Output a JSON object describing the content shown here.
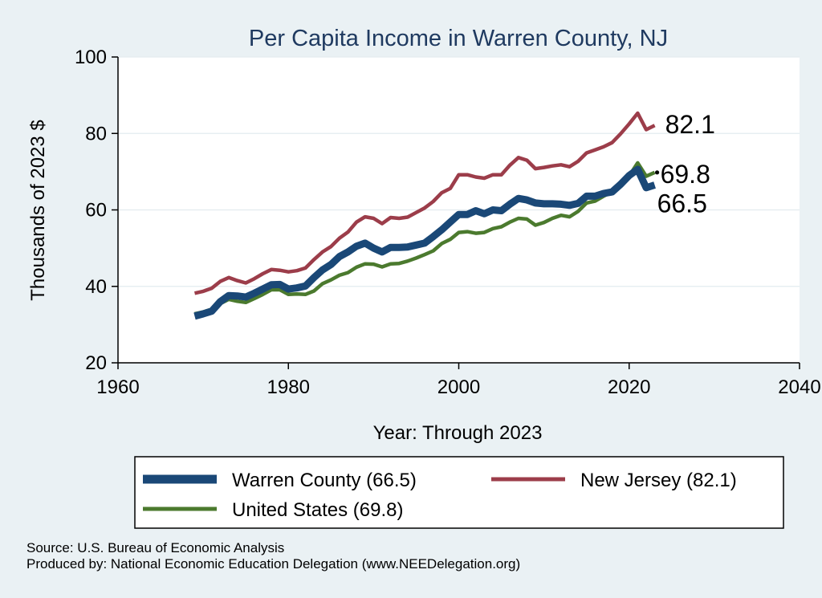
{
  "chart_data": {
    "type": "line",
    "title": "Per Capita Income in Warren County, NJ",
    "xlabel": "Year: Through 2023",
    "ylabel": "Thousands of 2023 $",
    "xlim": [
      1960,
      2040
    ],
    "ylim": [
      20,
      100
    ],
    "x_ticks": [
      1960,
      1980,
      2000,
      2020,
      2040
    ],
    "y_ticks": [
      20,
      40,
      60,
      80,
      100
    ],
    "grid": "horizontal",
    "legend_placement": "bottom",
    "x": [
      1969,
      1970,
      1971,
      1972,
      1973,
      1974,
      1975,
      1976,
      1977,
      1978,
      1979,
      1980,
      1981,
      1982,
      1983,
      1984,
      1985,
      1986,
      1987,
      1988,
      1989,
      1990,
      1991,
      1992,
      1993,
      1994,
      1995,
      1996,
      1997,
      1998,
      1999,
      2000,
      2001,
      2002,
      2003,
      2004,
      2005,
      2006,
      2007,
      2008,
      2009,
      2010,
      2011,
      2012,
      2013,
      2014,
      2015,
      2016,
      2017,
      2018,
      2019,
      2020,
      2021,
      2022,
      2023
    ],
    "series": [
      {
        "name": "Warren County (66.5)",
        "end_label": "66.5",
        "color": "#1a4877",
        "values": [
          32.2,
          32.8,
          33.5,
          36.0,
          37.6,
          37.5,
          37.2,
          38.2,
          39.3,
          40.4,
          40.5,
          39.3,
          39.6,
          40.1,
          42.3,
          44.3,
          45.7,
          47.8,
          49.0,
          50.5,
          51.3,
          50.0,
          49.0,
          50.2,
          50.2,
          50.3,
          50.8,
          51.3,
          53.0,
          54.8,
          56.8,
          58.8,
          58.8,
          59.8,
          59.0,
          60.0,
          59.8,
          61.5,
          63.0,
          62.6,
          61.8,
          61.6,
          61.6,
          61.5,
          61.2,
          61.7,
          63.6,
          63.6,
          64.3,
          64.7,
          66.7,
          69.0,
          70.6,
          65.8,
          66.5
        ]
      },
      {
        "name": "New Jersey (82.1)",
        "end_label": "82.1",
        "color": "#9c3d4a",
        "values": [
          38.2,
          38.7,
          39.5,
          41.3,
          42.3,
          41.5,
          40.9,
          42.0,
          43.3,
          44.4,
          44.2,
          43.8,
          44.1,
          44.8,
          47.0,
          49.0,
          50.4,
          52.6,
          54.2,
          56.8,
          58.2,
          57.8,
          56.4,
          58.0,
          57.8,
          58.1,
          59.3,
          60.5,
          62.2,
          64.5,
          65.6,
          69.2,
          69.2,
          68.6,
          68.3,
          69.2,
          69.2,
          71.7,
          73.7,
          73.0,
          70.8,
          71.1,
          71.5,
          71.8,
          71.3,
          72.7,
          74.9,
          75.7,
          76.5,
          77.6,
          79.9,
          82.5,
          85.3,
          81.0,
          82.1
        ]
      },
      {
        "name": "United States (69.8)",
        "end_label": "69.8",
        "color": "#4b7a2e",
        "values": [
          32.8,
          33.3,
          34.0,
          35.5,
          36.6,
          36.1,
          35.8,
          36.8,
          37.9,
          39.1,
          39.1,
          37.9,
          38.0,
          37.9,
          38.8,
          40.7,
          41.7,
          42.9,
          43.6,
          45.0,
          45.9,
          45.8,
          45.1,
          45.9,
          46.0,
          46.6,
          47.4,
          48.3,
          49.3,
          51.2,
          52.3,
          54.1,
          54.3,
          53.9,
          54.1,
          55.1,
          55.6,
          56.8,
          57.8,
          57.6,
          56.0,
          56.7,
          57.8,
          58.6,
          58.2,
          59.6,
          61.8,
          62.3,
          63.6,
          64.7,
          66.3,
          68.9,
          72.3,
          68.8,
          69.8
        ]
      }
    ]
  },
  "source_lines": [
    "Source: U.S. Bureau of Economic Analysis",
    "Produced by: National Economic Education Delegation (www.NEEDelegation.org)"
  ]
}
